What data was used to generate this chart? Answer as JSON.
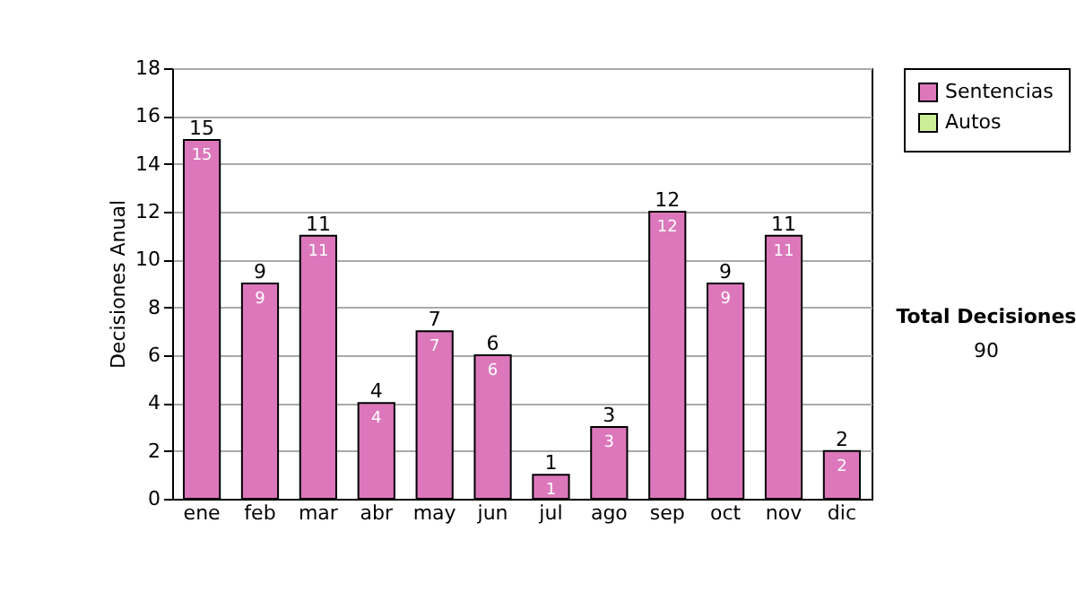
{
  "chart_data": {
    "type": "bar",
    "ylabel": "Decisiones Anual",
    "categories": [
      "ene",
      "feb",
      "mar",
      "abr",
      "may",
      "jun",
      "jul",
      "ago",
      "sep",
      "oct",
      "nov",
      "dic"
    ],
    "series": [
      {
        "name": "Sentencias",
        "color": "#dd77bb",
        "values": [
          15,
          9,
          11,
          4,
          7,
          6,
          1,
          3,
          12,
          9,
          11,
          2
        ]
      },
      {
        "name": "Autos",
        "color": "#ccee99",
        "values": [
          null,
          null,
          null,
          null,
          null,
          null,
          null,
          null,
          null,
          null,
          null,
          null
        ]
      }
    ],
    "ylim": [
      0,
      18
    ],
    "yticks": [
      0,
      2,
      4,
      6,
      8,
      10,
      12,
      14,
      16,
      18
    ],
    "grid": "y",
    "legend": "right",
    "data_labels": true,
    "totals": [
      "15",
      "9",
      "11",
      "4",
      "7",
      "6",
      "1",
      "3",
      "12",
      "9",
      "11",
      "2"
    ],
    "annotations": [
      "Total Decisiones",
      "90"
    ]
  }
}
